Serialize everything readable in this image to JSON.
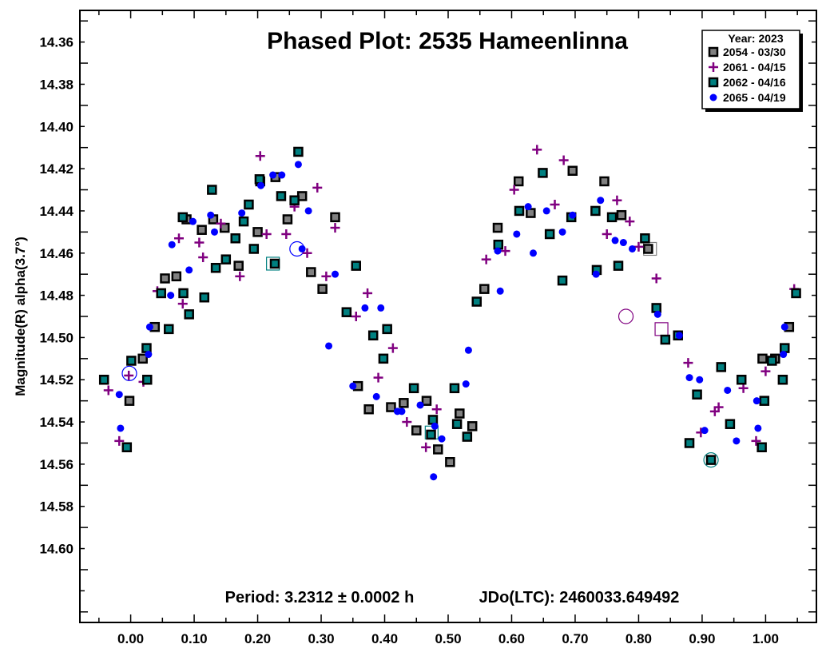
{
  "chart_data": {
    "type": "scatter",
    "title": "Phased Plot: 2535 Hameenlinna",
    "ylabel": "Magnitude(R) alpha(3.7°)",
    "xlabel": "",
    "xlim": [
      -0.08,
      1.08
    ],
    "ylim": [
      14.345,
      14.635
    ],
    "y_inverted": true,
    "x_ticks": [
      "0.00",
      "0.10",
      "0.20",
      "0.30",
      "0.40",
      "0.50",
      "0.60",
      "0.70",
      "0.80",
      "0.90",
      "1.00"
    ],
    "y_ticks": [
      "14.36",
      "14.38",
      "14.40",
      "14.42",
      "14.44",
      "14.46",
      "14.48",
      "14.50",
      "14.52",
      "14.54",
      "14.56",
      "14.58",
      "14.60"
    ],
    "grid": false,
    "legend_position": "top-right",
    "legend_title": "Year: 2023",
    "footer_period": "Period: 3.2312 ± 0.0002 h",
    "footer_epoch": "JDo(LTC): 2460033.649492",
    "series": [
      {
        "name": "2054 - 03/30",
        "marker": "square",
        "color": "#808080",
        "points": [
          [
            -0.002,
            14.53
          ],
          [
            0.019,
            14.51
          ],
          [
            0.038,
            14.495
          ],
          [
            0.054,
            14.472
          ],
          [
            0.072,
            14.471
          ],
          [
            0.088,
            14.444
          ],
          [
            0.112,
            14.449
          ],
          [
            0.13,
            14.444
          ],
          [
            0.148,
            14.448
          ],
          [
            0.17,
            14.466
          ],
          [
            0.2,
            14.45
          ],
          [
            0.204,
            14.426
          ],
          [
            0.228,
            14.424
          ],
          [
            0.247,
            14.444
          ],
          [
            0.27,
            14.433
          ],
          [
            0.284,
            14.469
          ],
          [
            0.302,
            14.477
          ],
          [
            0.322,
            14.443
          ],
          [
            0.358,
            14.523
          ],
          [
            0.375,
            14.534
          ],
          [
            0.41,
            14.533
          ],
          [
            0.43,
            14.531
          ],
          [
            0.45,
            14.544
          ],
          [
            0.466,
            14.53
          ],
          [
            0.484,
            14.553
          ],
          [
            0.503,
            14.559
          ],
          [
            0.518,
            14.536
          ],
          [
            0.538,
            14.542
          ],
          [
            0.557,
            14.477
          ],
          [
            0.578,
            14.448
          ],
          [
            0.611,
            14.426
          ],
          [
            0.63,
            14.441
          ],
          [
            0.696,
            14.421
          ],
          [
            0.746,
            14.426
          ],
          [
            0.773,
            14.442
          ],
          [
            0.815,
            14.458
          ],
          [
            0.995,
            14.51
          ],
          [
            1.015,
            14.51
          ],
          [
            1.037,
            14.495
          ]
        ]
      },
      {
        "name": "2061 - 04/15",
        "marker": "plus",
        "color": "#800080",
        "points": [
          [
            -0.035,
            14.525
          ],
          [
            -0.018,
            14.549
          ],
          [
            -0.003,
            14.518
          ],
          [
            0.02,
            14.521
          ],
          [
            0.042,
            14.478
          ],
          [
            0.076,
            14.453
          ],
          [
            0.082,
            14.484
          ],
          [
            0.108,
            14.455
          ],
          [
            0.114,
            14.462
          ],
          [
            0.142,
            14.446
          ],
          [
            0.172,
            14.471
          ],
          [
            0.204,
            14.414
          ],
          [
            0.214,
            14.451
          ],
          [
            0.245,
            14.451
          ],
          [
            0.258,
            14.438
          ],
          [
            0.278,
            14.46
          ],
          [
            0.294,
            14.429
          ],
          [
            0.308,
            14.471
          ],
          [
            0.322,
            14.448
          ],
          [
            0.355,
            14.49
          ],
          [
            0.373,
            14.479
          ],
          [
            0.39,
            14.519
          ],
          [
            0.413,
            14.505
          ],
          [
            0.435,
            14.54
          ],
          [
            0.465,
            14.552
          ],
          [
            0.482,
            14.534
          ],
          [
            0.56,
            14.463
          ],
          [
            0.59,
            14.459
          ],
          [
            0.604,
            14.43
          ],
          [
            0.64,
            14.411
          ],
          [
            0.668,
            14.437
          ],
          [
            0.682,
            14.416
          ],
          [
            0.75,
            14.451
          ],
          [
            0.766,
            14.435
          ],
          [
            0.786,
            14.445
          ],
          [
            0.8,
            14.457
          ],
          [
            0.828,
            14.472
          ],
          [
            0.878,
            14.512
          ],
          [
            0.898,
            14.545
          ],
          [
            0.92,
            14.535
          ],
          [
            0.926,
            14.533
          ],
          [
            0.965,
            14.524
          ],
          [
            0.985,
            14.549
          ],
          [
            1.0,
            14.516
          ],
          [
            1.045,
            14.477
          ]
        ]
      },
      {
        "name": "2062 - 04/16",
        "marker": "square",
        "color": "#008080",
        "points": [
          [
            -0.042,
            14.52
          ],
          [
            -0.006,
            14.552
          ],
          [
            0.001,
            14.511
          ],
          [
            0.025,
            14.505
          ],
          [
            0.026,
            14.52
          ],
          [
            0.048,
            14.479
          ],
          [
            0.06,
            14.496
          ],
          [
            0.082,
            14.443
          ],
          [
            0.083,
            14.479
          ],
          [
            0.092,
            14.489
          ],
          [
            0.116,
            14.481
          ],
          [
            0.128,
            14.43
          ],
          [
            0.134,
            14.467
          ],
          [
            0.15,
            14.463
          ],
          [
            0.165,
            14.453
          ],
          [
            0.178,
            14.445
          ],
          [
            0.186,
            14.437
          ],
          [
            0.194,
            14.458
          ],
          [
            0.203,
            14.425
          ],
          [
            0.227,
            14.465
          ],
          [
            0.237,
            14.433
          ],
          [
            0.258,
            14.435
          ],
          [
            0.264,
            14.412
          ],
          [
            0.34,
            14.488
          ],
          [
            0.355,
            14.466
          ],
          [
            0.382,
            14.499
          ],
          [
            0.398,
            14.51
          ],
          [
            0.404,
            14.496
          ],
          [
            0.446,
            14.524
          ],
          [
            0.476,
            14.539
          ],
          [
            0.473,
            14.546
          ],
          [
            0.51,
            14.524
          ],
          [
            0.514,
            14.541
          ],
          [
            0.53,
            14.547
          ],
          [
            0.545,
            14.483
          ],
          [
            0.579,
            14.456
          ],
          [
            0.612,
            14.44
          ],
          [
            0.649,
            14.422
          ],
          [
            0.66,
            14.451
          ],
          [
            0.68,
            14.473
          ],
          [
            0.694,
            14.443
          ],
          [
            0.732,
            14.44
          ],
          [
            0.734,
            14.468
          ],
          [
            0.758,
            14.443
          ],
          [
            0.768,
            14.466
          ],
          [
            0.81,
            14.453
          ],
          [
            0.828,
            14.486
          ],
          [
            0.842,
            14.501
          ],
          [
            0.862,
            14.499
          ],
          [
            0.88,
            14.55
          ],
          [
            0.892,
            14.527
          ],
          [
            0.914,
            14.558
          ],
          [
            0.93,
            14.514
          ],
          [
            0.944,
            14.541
          ],
          [
            0.962,
            14.52
          ],
          [
            0.994,
            14.552
          ],
          [
            0.998,
            14.53
          ],
          [
            1.01,
            14.511
          ],
          [
            1.027,
            14.52
          ],
          [
            1.03,
            14.505
          ],
          [
            1.048,
            14.479
          ]
        ]
      },
      {
        "name": "2065 - 04/19",
        "marker": "circle",
        "color": "#0000ff",
        "points": [
          [
            -0.018,
            14.527
          ],
          [
            -0.016,
            14.543
          ],
          [
            0.028,
            14.508
          ],
          [
            0.03,
            14.495
          ],
          [
            0.063,
            14.48
          ],
          [
            0.065,
            14.456
          ],
          [
            0.092,
            14.468
          ],
          [
            0.098,
            14.445
          ],
          [
            0.126,
            14.442
          ],
          [
            0.132,
            14.45
          ],
          [
            0.175,
            14.441
          ],
          [
            0.205,
            14.428
          ],
          [
            0.224,
            14.423
          ],
          [
            0.238,
            14.423
          ],
          [
            0.264,
            14.418
          ],
          [
            0.27,
            14.458
          ],
          [
            0.28,
            14.44
          ],
          [
            0.312,
            14.504
          ],
          [
            0.322,
            14.47
          ],
          [
            0.35,
            14.523
          ],
          [
            0.369,
            14.486
          ],
          [
            0.387,
            14.528
          ],
          [
            0.394,
            14.486
          ],
          [
            0.42,
            14.535
          ],
          [
            0.427,
            14.535
          ],
          [
            0.456,
            14.532
          ],
          [
            0.477,
            14.566
          ],
          [
            0.479,
            14.542
          ],
          [
            0.49,
            14.548
          ],
          [
            0.528,
            14.522
          ],
          [
            0.532,
            14.506
          ],
          [
            0.578,
            14.459
          ],
          [
            0.582,
            14.478
          ],
          [
            0.608,
            14.451
          ],
          [
            0.626,
            14.438
          ],
          [
            0.634,
            14.46
          ],
          [
            0.655,
            14.44
          ],
          [
            0.68,
            14.45
          ],
          [
            0.696,
            14.442
          ],
          [
            0.733,
            14.47
          ],
          [
            0.74,
            14.435
          ],
          [
            0.763,
            14.454
          ],
          [
            0.776,
            14.455
          ],
          [
            0.79,
            14.458
          ],
          [
            0.83,
            14.489
          ],
          [
            0.864,
            14.499
          ],
          [
            0.88,
            14.519
          ],
          [
            0.896,
            14.52
          ],
          [
            0.904,
            14.544
          ],
          [
            0.94,
            14.525
          ],
          [
            0.954,
            14.549
          ],
          [
            0.986,
            14.53
          ],
          [
            0.988,
            14.543
          ],
          [
            1.028,
            14.508
          ],
          [
            1.03,
            14.495
          ]
        ]
      }
    ],
    "highlighted": [
      {
        "series": "2061 - 04/15",
        "x": 0.78,
        "y": 14.49,
        "ring": "circle"
      },
      {
        "series": "2065 - 04/19",
        "x": 0.262,
        "y": 14.458,
        "ring": "circle"
      },
      {
        "series": "2065 - 04/19",
        "x": -0.002,
        "y": 14.517,
        "ring": "circle"
      },
      {
        "series": "2062 - 04/16",
        "x": 0.224,
        "y": 14.465,
        "ring": "square"
      },
      {
        "series": "2062 - 04/16",
        "x": 0.914,
        "y": 14.558,
        "ring": "circle"
      },
      {
        "series": "2054 - 03/30",
        "x": 0.818,
        "y": 14.458,
        "ring": "square"
      },
      {
        "series": "2061 - 04/15",
        "x": 0.836,
        "y": 14.496,
        "ring": "square"
      },
      {
        "series": "2062 - 04/16",
        "x": 0.474,
        "y": 14.545,
        "ring": "square"
      }
    ]
  }
}
